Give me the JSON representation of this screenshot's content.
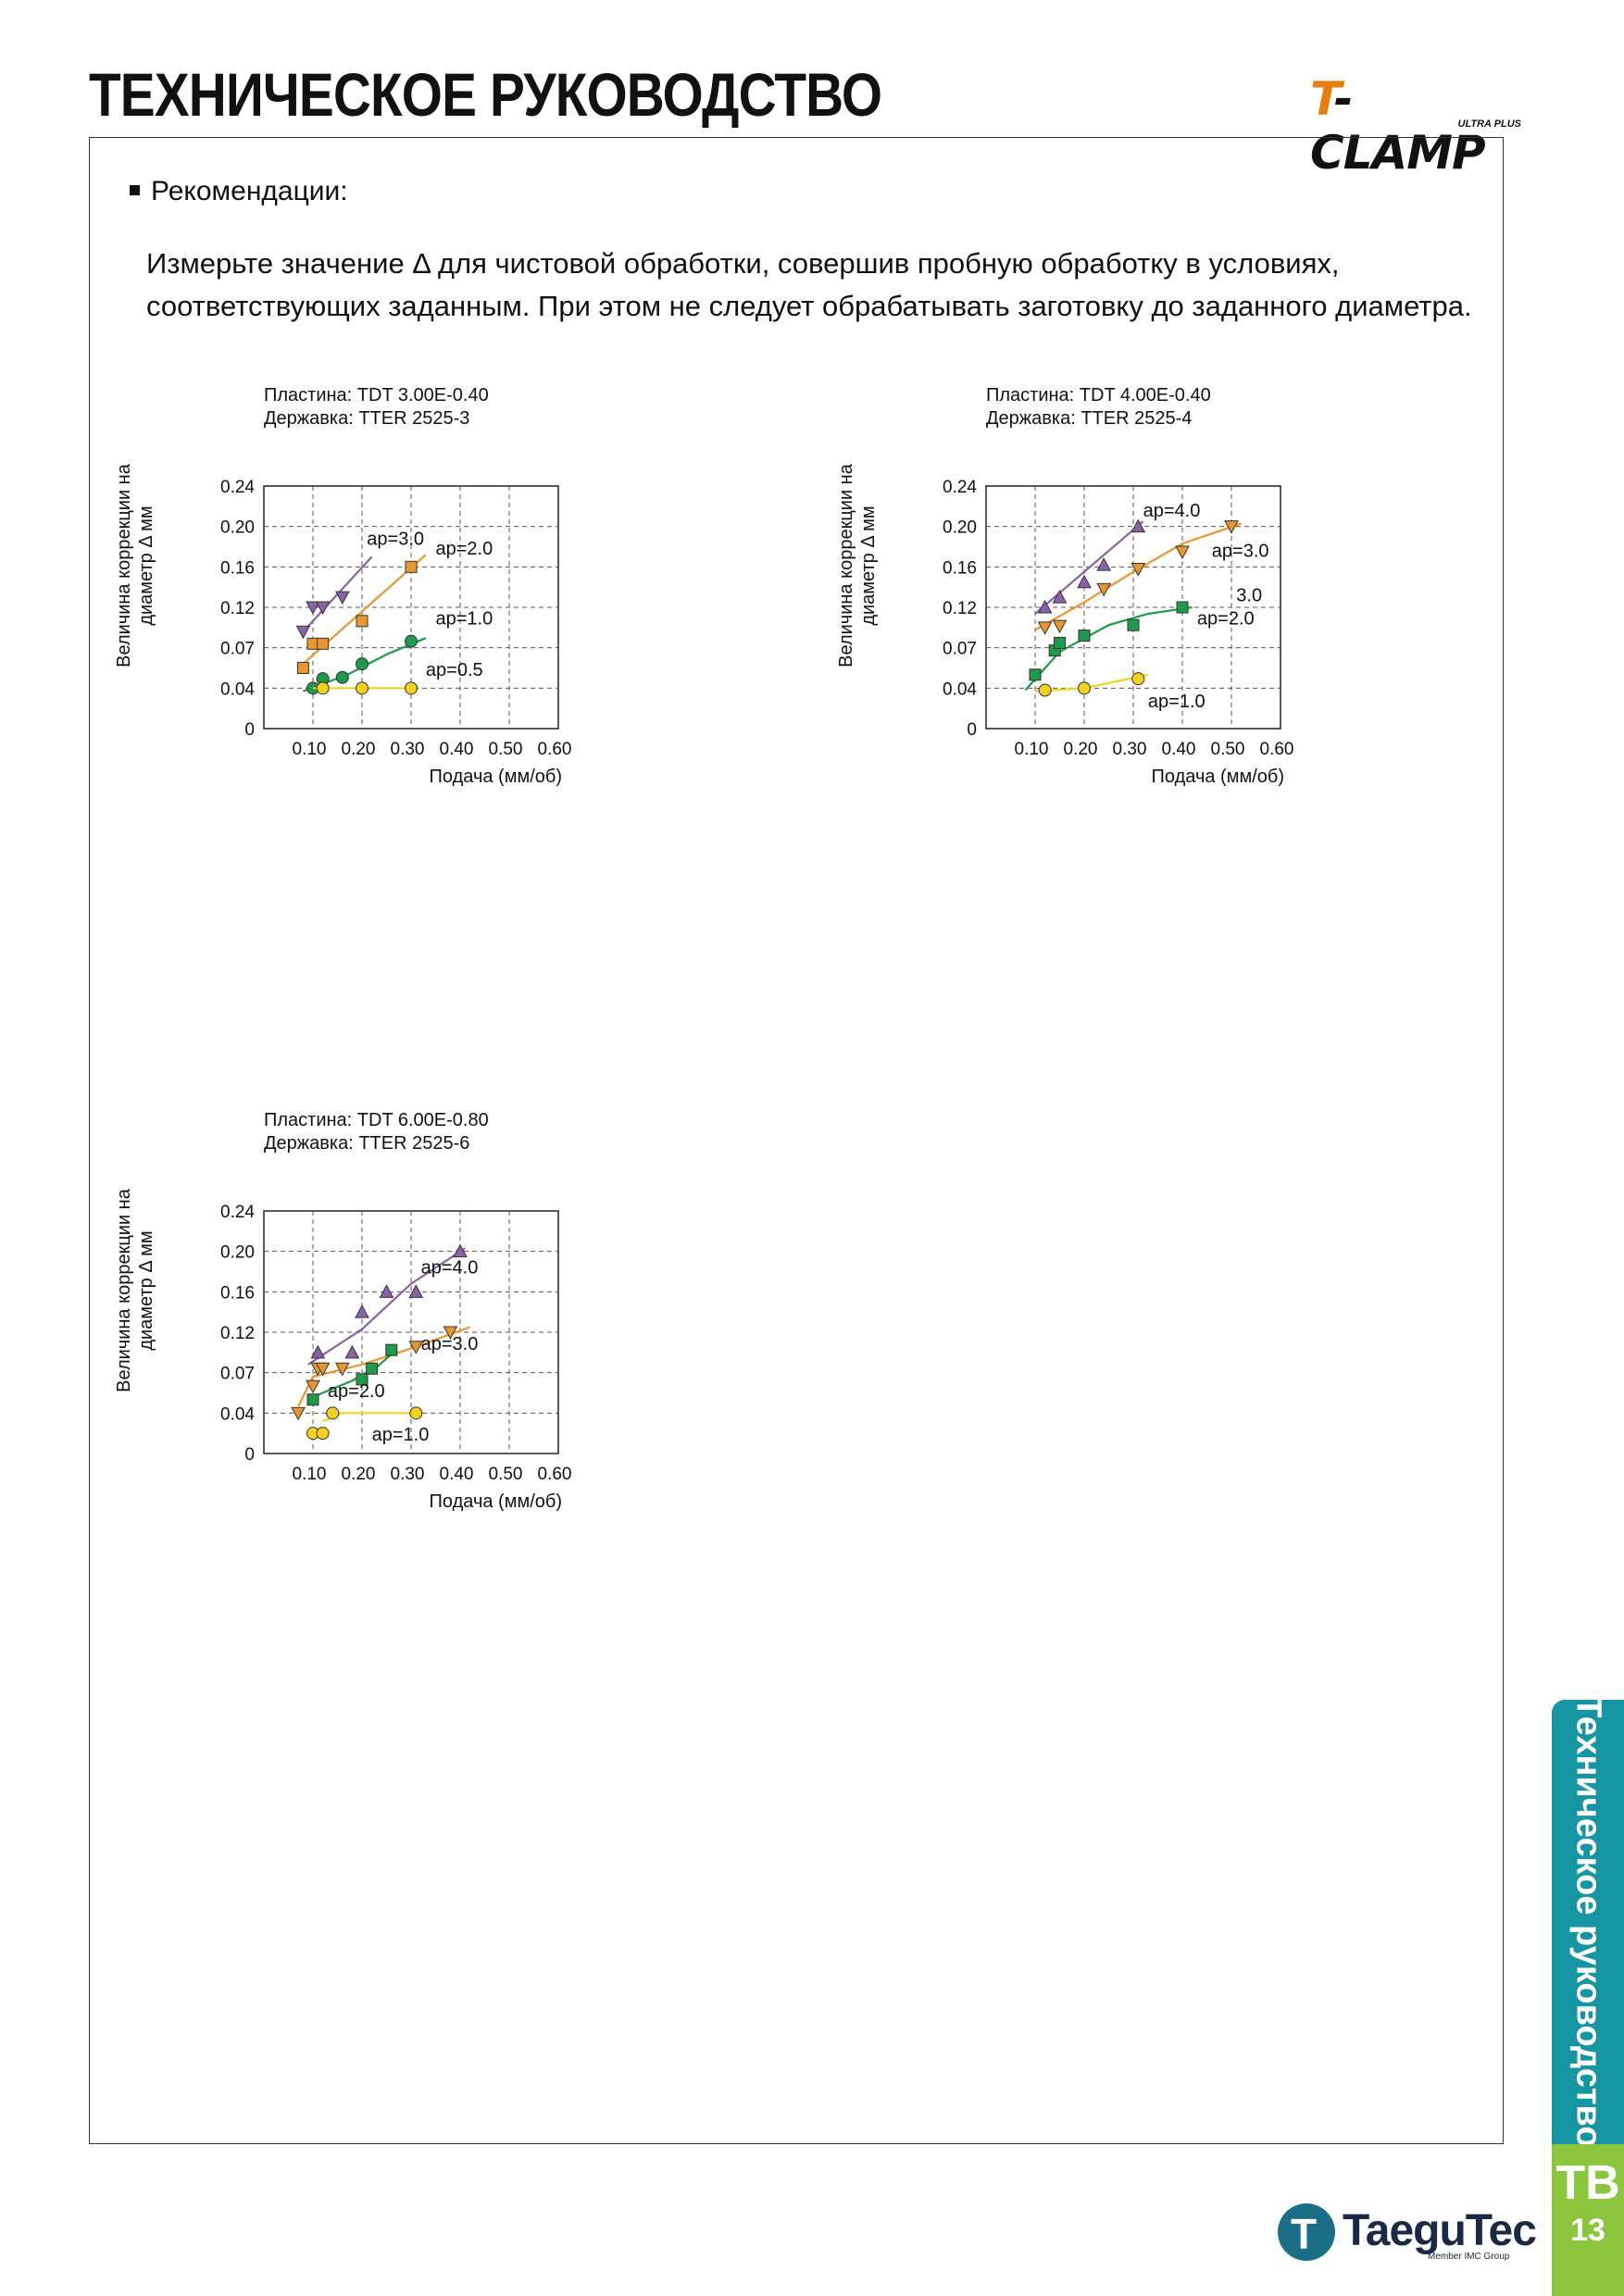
{
  "header": {
    "title": "ТЕХНИЧЕСКОЕ РУКОВОДСТВО",
    "brand": "T-CLAMP",
    "brand_sub": "ULTRA PLUS"
  },
  "section": {
    "heading": "Рекомендации:",
    "line1": "Измерьте значение Δ для чистовой обработки, совершив пробную обработку в условиях,",
    "line2": "соответствующих заданным. При этом не следует обрабатывать заготовку до заданного диаметра."
  },
  "sidebar": {
    "tab_label": "Техническое руководство",
    "code": "TB",
    "page": "13"
  },
  "footer": {
    "logo": "TaeguTec",
    "logo_sub": "Member IMC Group"
  },
  "colors": {
    "purple": "#8a62aa",
    "orange": "#e8962e",
    "green": "#1f9a4a",
    "yellow": "#f2d21c",
    "grid": "#555555",
    "tab": "#1695a3",
    "tab_code": "#8cc63f"
  },
  "chart_data": [
    {
      "type": "scatter",
      "title": "",
      "subtitle_lines": [
        "Пластина: TDT 3.00E-0.40",
        "Державка: TTER 2525-3"
      ],
      "xlabel": "Подача (мм/об)",
      "ylabel_lines": [
        "Величина коррекции на",
        "диаметр Δ мм"
      ],
      "xlim": [
        0,
        0.6
      ],
      "x_ticks": [
        "0.10",
        "0.20",
        "0.30",
        "0.40",
        "0.50",
        "0.60"
      ],
      "y_ticks": [
        "0",
        "0.04",
        "0.07",
        "0.12",
        "0.16",
        "0.20",
        "0.24"
      ],
      "grid": true,
      "series": [
        {
          "name": "ap=3.0",
          "color": "purple",
          "marker": "triangle-down",
          "points": [
            [
              0.08,
              0.09
            ],
            [
              0.1,
              0.12
            ],
            [
              0.12,
              0.12
            ],
            [
              0.16,
              0.13
            ]
          ],
          "trend": [
            [
              0.08,
              0.09
            ],
            [
              0.22,
              0.17
            ]
          ]
        },
        {
          "name": "ap=2.0",
          "color": "orange",
          "marker": "square",
          "points": [
            [
              0.08,
              0.055
            ],
            [
              0.1,
              0.075
            ],
            [
              0.12,
              0.075
            ],
            [
              0.2,
              0.103
            ],
            [
              0.3,
              0.16
            ]
          ],
          "trend": [
            [
              0.08,
              0.058
            ],
            [
              0.33,
              0.172
            ]
          ]
        },
        {
          "name": "ap=1.0",
          "color": "green",
          "marker": "circle",
          "points": [
            [
              0.1,
              0.04
            ],
            [
              0.12,
              0.047
            ],
            [
              0.16,
              0.048
            ],
            [
              0.2,
              0.058
            ],
            [
              0.3,
              0.078
            ]
          ],
          "trend": [
            [
              0.08,
              0.037
            ],
            [
              0.17,
              0.05
            ],
            [
              0.25,
              0.065
            ],
            [
              0.33,
              0.082
            ]
          ]
        },
        {
          "name": "ap=0.5",
          "color": "yellow",
          "marker": "circle",
          "points": [
            [
              0.12,
              0.04
            ],
            [
              0.2,
              0.04
            ],
            [
              0.3,
              0.04
            ]
          ],
          "trend": [
            [
              0.1,
              0.04
            ],
            [
              0.3,
              0.04
            ]
          ]
        }
      ],
      "labels": [
        {
          "text": "ap=3.0",
          "x": 0.21,
          "y": 0.182
        },
        {
          "text": "ap=2.0",
          "x": 0.35,
          "y": 0.172
        },
        {
          "text": "ap=1.0",
          "x": 0.35,
          "y": 0.099
        },
        {
          "text": "ap=0.5",
          "x": 0.33,
          "y": 0.049
        }
      ]
    },
    {
      "type": "scatter",
      "title": "",
      "subtitle_lines": [
        "Пластина: TDT 4.00E-0.40",
        "Державка: TTER 2525-4"
      ],
      "xlabel": "Подача (мм/об)",
      "ylabel_lines": [
        "Величина коррекции на",
        "диаметр Δ мм"
      ],
      "xlim": [
        0,
        0.6
      ],
      "x_ticks": [
        "0.10",
        "0.20",
        "0.30",
        "0.40",
        "0.50",
        "0.60"
      ],
      "y_ticks": [
        "0",
        "0.04",
        "0.07",
        "0.12",
        "0.16",
        "0.20",
        "0.24"
      ],
      "grid": true,
      "series": [
        {
          "name": "ap=4.0",
          "color": "purple",
          "marker": "triangle-up",
          "points": [
            [
              0.12,
              0.12
            ],
            [
              0.15,
              0.13
            ],
            [
              0.2,
              0.145
            ],
            [
              0.24,
              0.162
            ],
            [
              0.31,
              0.2
            ]
          ],
          "trend": [
            [
              0.1,
              0.112
            ],
            [
              0.32,
              0.205
            ]
          ]
        },
        {
          "name": "ap=3.0",
          "color": "orange",
          "marker": "triangle-down",
          "points": [
            [
              0.12,
              0.095
            ],
            [
              0.15,
              0.097
            ],
            [
              0.24,
              0.138
            ],
            [
              0.31,
              0.158
            ],
            [
              0.4,
              0.175
            ],
            [
              0.5,
              0.2
            ]
          ],
          "trend": [
            [
              0.1,
              0.092
            ],
            [
              0.2,
              0.125
            ],
            [
              0.3,
              0.155
            ],
            [
              0.4,
              0.183
            ],
            [
              0.52,
              0.203
            ]
          ]
        },
        {
          "name": "ap=2.0",
          "color": "green",
          "marker": "square",
          "points": [
            [
              0.1,
              0.05
            ],
            [
              0.14,
              0.068
            ],
            [
              0.15,
              0.076
            ],
            [
              0.2,
              0.085
            ],
            [
              0.3,
              0.098
            ],
            [
              0.4,
              0.12
            ]
          ],
          "trend": [
            [
              0.08,
              0.038
            ],
            [
              0.15,
              0.067
            ],
            [
              0.25,
              0.098
            ],
            [
              0.33,
              0.112
            ],
            [
              0.42,
              0.12
            ]
          ]
        },
        {
          "name": "ap=1.0",
          "color": "yellow",
          "marker": "circle",
          "points": [
            [
              0.12,
              0.038
            ],
            [
              0.2,
              0.04
            ],
            [
              0.31,
              0.047
            ]
          ],
          "trend": [
            [
              0.1,
              0.037
            ],
            [
              0.2,
              0.04
            ],
            [
              0.33,
              0.05
            ]
          ]
        }
      ],
      "labels": [
        {
          "text": "ap=4.0",
          "x": 0.32,
          "y": 0.21
        },
        {
          "text": "ap=3.0",
          "x": 0.46,
          "y": 0.17
        },
        {
          "text": "3.0",
          "x": 0.51,
          "y": 0.126
        },
        {
          "text": "ap=2.0",
          "x": 0.43,
          "y": 0.099
        },
        {
          "text": "ap=1.0",
          "x": 0.33,
          "y": 0.021
        }
      ]
    },
    {
      "type": "scatter",
      "title": "",
      "subtitle_lines": [
        "Пластина: TDT 6.00E-0.80",
        "Державка: TTER 2525-6"
      ],
      "xlabel": "Подача (мм/об)",
      "ylabel_lines": [
        "Величина коррекции на",
        "диаметр Δ мм"
      ],
      "xlim": [
        0,
        0.6
      ],
      "x_ticks": [
        "0.10",
        "0.20",
        "0.30",
        "0.40",
        "0.50",
        "0.60"
      ],
      "y_ticks": [
        "0",
        "0.04",
        "0.07",
        "0.12",
        "0.16",
        "0.20",
        "0.24"
      ],
      "grid": true,
      "series": [
        {
          "name": "ap=4.0",
          "color": "purple",
          "marker": "triangle-up",
          "points": [
            [
              0.11,
              0.095
            ],
            [
              0.18,
              0.095
            ],
            [
              0.2,
              0.14
            ],
            [
              0.25,
              0.16
            ],
            [
              0.31,
              0.16
            ],
            [
              0.4,
              0.2
            ]
          ],
          "trend": [
            [
              0.09,
              0.08
            ],
            [
              0.2,
              0.123
            ],
            [
              0.3,
              0.168
            ],
            [
              0.41,
              0.203
            ]
          ]
        },
        {
          "name": "ap=3.0",
          "color": "orange",
          "marker": "triangle-down",
          "points": [
            [
              0.07,
              0.04
            ],
            [
              0.1,
              0.06
            ],
            [
              0.11,
              0.075
            ],
            [
              0.12,
              0.075
            ],
            [
              0.16,
              0.075
            ],
            [
              0.31,
              0.102
            ],
            [
              0.38,
              0.12
            ]
          ],
          "trend": [
            [
              0.07,
              0.045
            ],
            [
              0.1,
              0.067
            ],
            [
              0.2,
              0.08
            ],
            [
              0.3,
              0.1
            ],
            [
              0.42,
              0.125
            ]
          ]
        },
        {
          "name": "ap=2.0",
          "color": "green",
          "marker": "square",
          "points": [
            [
              0.1,
              0.05
            ],
            [
              0.2,
              0.065
            ],
            [
              0.22,
              0.075
            ],
            [
              0.26,
              0.098
            ]
          ],
          "trend": [
            [
              0.1,
              0.052
            ],
            [
              0.18,
              0.064
            ],
            [
              0.23,
              0.077
            ],
            [
              0.27,
              0.098
            ]
          ]
        },
        {
          "name": "ap=1.0",
          "color": "yellow",
          "marker": "circle",
          "points": [
            [
              0.1,
              0.02
            ],
            [
              0.12,
              0.02
            ],
            [
              0.14,
              0.04
            ],
            [
              0.31,
              0.04
            ]
          ],
          "trend": [
            [
              0.12,
              0.032
            ],
            [
              0.16,
              0.04
            ],
            [
              0.32,
              0.04
            ]
          ]
        }
      ],
      "labels": [
        {
          "text": "ap=4.0",
          "x": 0.32,
          "y": 0.178
        },
        {
          "text": "ap=3.0",
          "x": 0.32,
          "y": 0.098
        },
        {
          "text": "ap=2.0",
          "x": 0.13,
          "y": 0.052
        },
        {
          "text": "ap=1.0",
          "x": 0.22,
          "y": 0.013
        }
      ]
    }
  ]
}
